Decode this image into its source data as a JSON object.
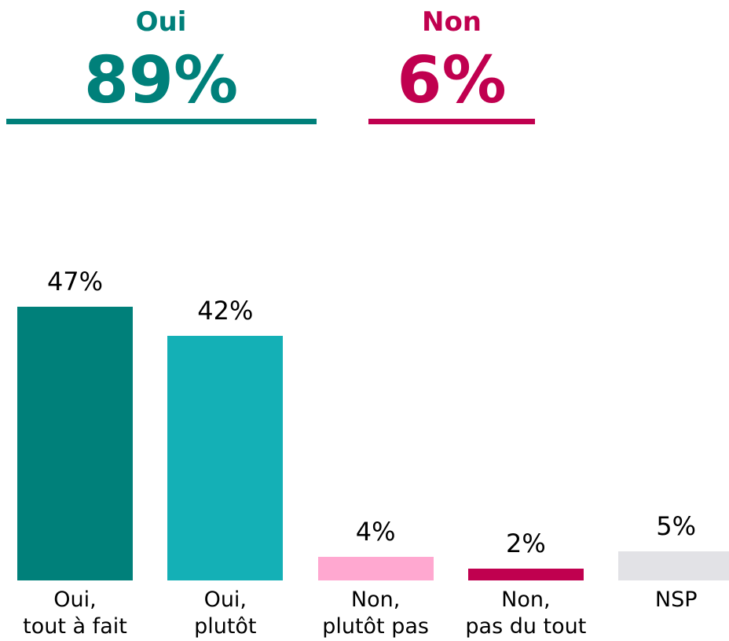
{
  "chart_data": {
    "type": "bar",
    "summary": [
      {
        "label": "Oui",
        "value": 89,
        "value_label": "89%",
        "color": "#00807a"
      },
      {
        "label": "Non",
        "value": 6,
        "value_label": "6%",
        "color": "#c0004f"
      }
    ],
    "categories": [
      "Oui,\ntout à fait",
      "Oui,\nplutôt",
      "Non,\nplutôt pas",
      "Non,\npas du tout",
      "NSP"
    ],
    "values": [
      47,
      42,
      4,
      2,
      5
    ],
    "value_labels": [
      "47%",
      "42%",
      "4%",
      "2%",
      "5%"
    ],
    "colors": [
      "#00807a",
      "#14b0b6",
      "#ffa8d0",
      "#c0004f",
      "#e2e2e6"
    ]
  }
}
